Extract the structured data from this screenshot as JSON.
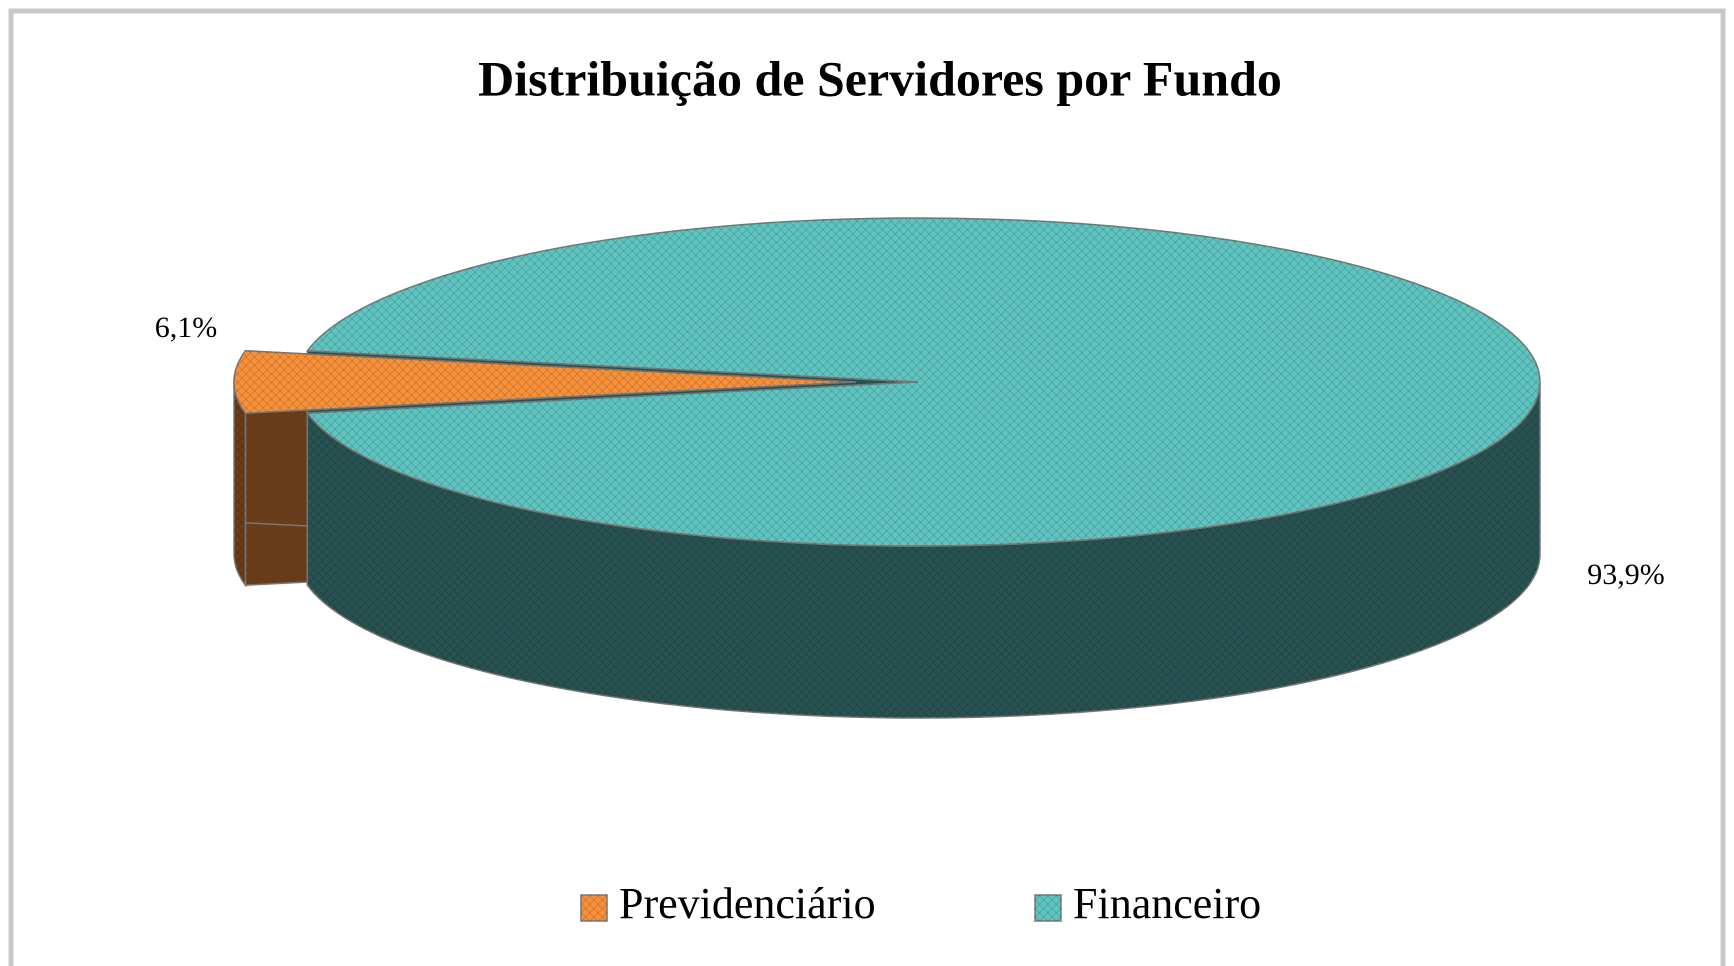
{
  "chart_data": {
    "type": "pie",
    "title": "Distribuição de Servidores por Fundo",
    "categories": [
      "Previdenciário",
      "Financeiro"
    ],
    "values": [
      6.1,
      93.9
    ],
    "value_labels": [
      "6,1%",
      "93,9%"
    ],
    "colors": [
      "#f7903a",
      "#5fc4c0"
    ],
    "legend": "bottom"
  }
}
